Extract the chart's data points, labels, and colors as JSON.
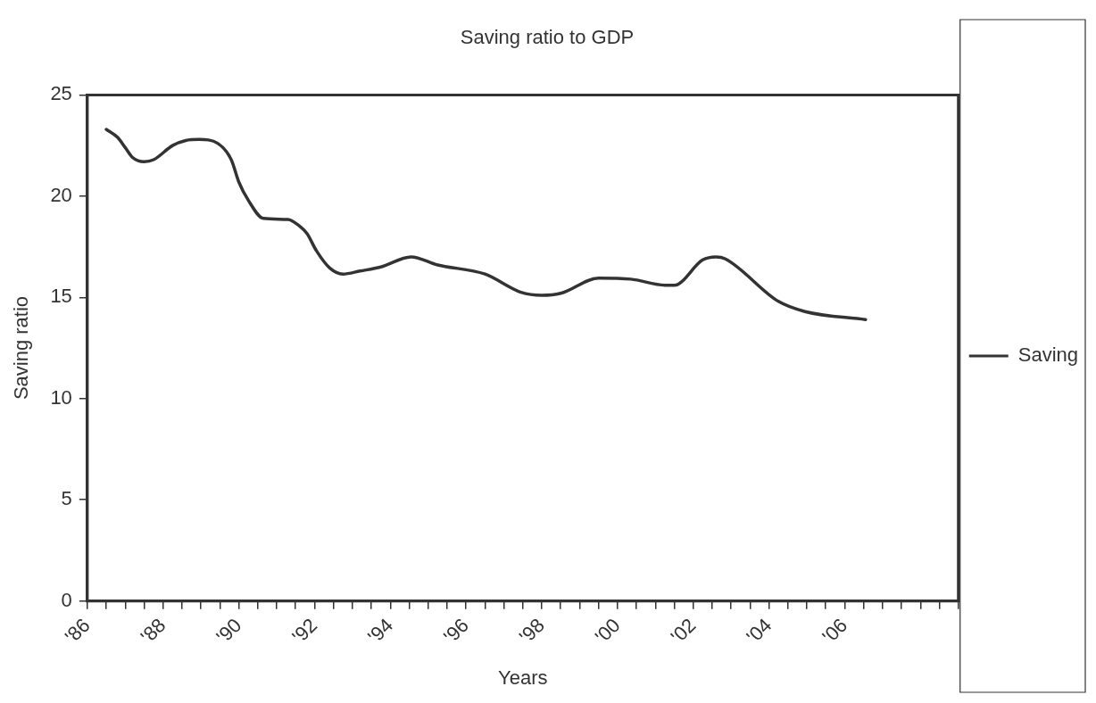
{
  "chart_data": {
    "type": "line",
    "title": "Saving ratio to GDP",
    "xlabel": "Years",
    "ylabel": "Saving ratio",
    "x": [
      1986.5,
      1986.8,
      1987.0,
      1987.2,
      1987.5,
      1987.75,
      1988.25,
      1988.6,
      1988.95,
      1989.45,
      1989.8,
      1990.0,
      1990.25,
      1990.65,
      1991.3,
      1991.55,
      1991.8,
      1992.05,
      1992.4,
      1992.75,
      1993.2,
      1993.75,
      1994.55,
      1995.25,
      1996.5,
      1997.45,
      1998.0,
      1998.5,
      1999.5,
      2000.35,
      2001.25,
      2001.5,
      2002.25,
      2002.6,
      2002.85,
      2004.25,
      2004.95,
      2006.55
    ],
    "series": [
      {
        "name": "Saving",
        "color": "#333333",
        "values": [
          23.3,
          22.9,
          22.4,
          21.9,
          21.7,
          21.8,
          22.5,
          22.75,
          22.8,
          22.6,
          21.8,
          20.7,
          19.8,
          18.9,
          18.85,
          18.6,
          18.15,
          17.3,
          16.45,
          16.15,
          16.3,
          16.5,
          17.0,
          16.6,
          16.15,
          15.25,
          15.1,
          15.2,
          15.95,
          15.9,
          15.6,
          15.6,
          16.85,
          17.0,
          16.9,
          14.8,
          14.3,
          13.9
        ]
      }
    ],
    "xlim": [
      1986,
      2009
    ],
    "xticks": [
      {
        "value": 1986,
        "label": "'86"
      },
      {
        "value": 1986.5,
        "label": null
      },
      {
        "value": 1987,
        "label": null
      },
      {
        "value": 1987.5,
        "label": null
      },
      {
        "value": 1988,
        "label": "'88"
      },
      {
        "value": 1988.5,
        "label": null
      },
      {
        "value": 1989,
        "label": null
      },
      {
        "value": 1989.5,
        "label": null
      },
      {
        "value": 1990,
        "label": "'90"
      },
      {
        "value": 1990.5,
        "label": null
      },
      {
        "value": 1991,
        "label": null
      },
      {
        "value": 1991.5,
        "label": null
      },
      {
        "value": 1992,
        "label": "'92"
      },
      {
        "value": 1992.5,
        "label": null
      },
      {
        "value": 1993,
        "label": null
      },
      {
        "value": 1993.5,
        "label": null
      },
      {
        "value": 1994,
        "label": "'94"
      },
      {
        "value": 1994.5,
        "label": null
      },
      {
        "value": 1995,
        "label": null
      },
      {
        "value": 1995.5,
        "label": null
      },
      {
        "value": 1996,
        "label": "'96"
      },
      {
        "value": 1996.5,
        "label": null
      },
      {
        "value": 1997,
        "label": null
      },
      {
        "value": 1997.5,
        "label": null
      },
      {
        "value": 1998,
        "label": "'98"
      },
      {
        "value": 1998.5,
        "label": null
      },
      {
        "value": 1999,
        "label": null
      },
      {
        "value": 1999.5,
        "label": null
      },
      {
        "value": 2000,
        "label": "'00"
      },
      {
        "value": 2000.5,
        "label": null
      },
      {
        "value": 2001,
        "label": null
      },
      {
        "value": 2001.5,
        "label": null
      },
      {
        "value": 2002,
        "label": "'02"
      },
      {
        "value": 2002.5,
        "label": null
      },
      {
        "value": 2003,
        "label": null
      },
      {
        "value": 2003.5,
        "label": null
      },
      {
        "value": 2004,
        "label": "'04"
      },
      {
        "value": 2004.5,
        "label": null
      },
      {
        "value": 2005,
        "label": null
      },
      {
        "value": 2005.5,
        "label": null
      },
      {
        "value": 2006,
        "label": "'06"
      },
      {
        "value": 2006.5,
        "label": null
      },
      {
        "value": 2007,
        "label": null
      },
      {
        "value": 2007.5,
        "label": null
      },
      {
        "value": 2008,
        "label": null
      },
      {
        "value": 2008.5,
        "label": null
      },
      {
        "value": 2009,
        "label": null
      }
    ],
    "ylim": [
      0,
      25
    ],
    "yticks": [
      0,
      5,
      10,
      15,
      20,
      25
    ],
    "grid": false,
    "legend": "right",
    "marker": "none",
    "line_style": "solid"
  }
}
